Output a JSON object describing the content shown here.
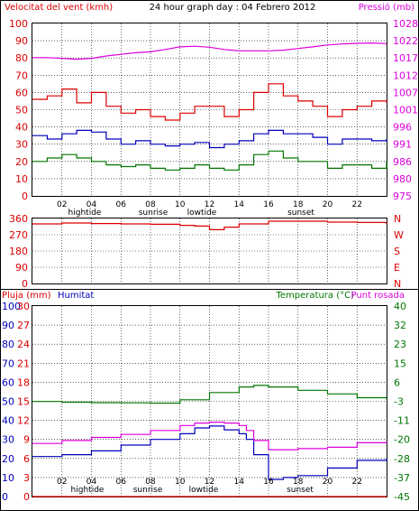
{
  "header": {
    "wind_speed_label": "Velocitat del vent (kmh)",
    "title": "24 hour graph day : 04 Febrero 2012",
    "pressure_label": "Pressió (mb)"
  },
  "bottom_header": {
    "rain_label": "Pluja (mm)",
    "humidity_label": "Humitat",
    "temperature_label": "Temperatura (°C)",
    "dewpoint_label": "Punt rosada"
  },
  "colors": {
    "wind": "#dd0000",
    "gust": "#ff0000",
    "avg": "#0000bb",
    "min": "#007700",
    "pressure": "#dd00dd",
    "humidity": "#0000bb",
    "temperature": "#007700",
    "dewpoint": "#dd00dd",
    "rain": "#dd0000",
    "grid": "#000000"
  },
  "x_ticks": [
    "02",
    "04",
    "06",
    "08",
    "10",
    "12",
    "14",
    "16",
    "18",
    "20",
    "22"
  ],
  "events": {
    "hightide": "hightide",
    "sunrise": "sunrise",
    "lowtide": "lowtide",
    "sunset": "sunset"
  },
  "chart_data": [
    {
      "type": "line",
      "x_unit": "hour",
      "x_ticks": [
        "02",
        "04",
        "06",
        "08",
        "10",
        "12",
        "14",
        "16",
        "18",
        "20",
        "22"
      ],
      "ylim": [
        0,
        100
      ],
      "ylim_right": [
        975,
        1028
      ],
      "yticks_left": [
        0,
        10,
        20,
        30,
        40,
        50,
        60,
        70,
        80,
        90,
        100
      ],
      "yticks_right": [
        975,
        980,
        986,
        991,
        996,
        1001,
        1007,
        1012,
        1017,
        1022,
        1028
      ],
      "xlabel": "",
      "ylabel": "Velocitat del vent (kmh)",
      "ylabel_right": "Pressió (mb)",
      "series": [
        {
          "name": "",
          "color": "#dd0000",
          "x": [
            0,
            1,
            2,
            3,
            4,
            5,
            6,
            7,
            8,
            9,
            10,
            11,
            12,
            13,
            14,
            15,
            16,
            17,
            18,
            19,
            20,
            21,
            22,
            23,
            24
          ],
          "values": [
            56,
            58,
            62,
            54,
            60,
            52,
            48,
            50,
            46,
            44,
            48,
            52,
            52,
            46,
            50,
            60,
            65,
            58,
            55,
            52,
            46,
            50,
            52,
            55,
            54
          ]
        },
        {
          "name": "",
          "color": "#0000bb",
          "x": [
            0,
            1,
            2,
            3,
            4,
            5,
            6,
            7,
            8,
            9,
            10,
            11,
            12,
            13,
            14,
            15,
            16,
            17,
            18,
            19,
            20,
            21,
            22,
            23,
            24
          ],
          "values": [
            35,
            33,
            36,
            38,
            37,
            33,
            30,
            32,
            30,
            29,
            30,
            31,
            28,
            30,
            32,
            36,
            38,
            36,
            36,
            34,
            30,
            33,
            33,
            32,
            33
          ]
        },
        {
          "name": "",
          "color": "#007700",
          "x": [
            0,
            1,
            2,
            3,
            4,
            5,
            6,
            7,
            8,
            9,
            10,
            11,
            12,
            13,
            14,
            15,
            16,
            17,
            18,
            19,
            20,
            21,
            22,
            23,
            24
          ],
          "values": [
            20,
            22,
            24,
            22,
            20,
            18,
            17,
            18,
            16,
            15,
            16,
            18,
            16,
            15,
            18,
            24,
            26,
            22,
            20,
            20,
            16,
            18,
            18,
            16,
            20
          ]
        },
        {
          "name": "Pressió (mb)",
          "color": "#dd00dd",
          "axis": "right",
          "x": [
            0,
            1,
            2,
            3,
            4,
            5,
            6,
            7,
            8,
            9,
            10,
            11,
            12,
            13,
            14,
            15,
            16,
            17,
            18,
            19,
            20,
            21,
            22,
            23,
            24
          ],
          "values": [
            1017.5,
            1017.5,
            1017.3,
            1017.0,
            1017.3,
            1018.0,
            1018.5,
            1019.0,
            1019.3,
            1020.0,
            1020.8,
            1021.0,
            1020.7,
            1020.0,
            1019.6,
            1019.6,
            1019.6,
            1019.8,
            1020.3,
            1020.8,
            1021.4,
            1021.7,
            1021.9,
            1022.0,
            1021.8
          ]
        }
      ]
    },
    {
      "type": "line",
      "x_unit": "hour",
      "ylim": [
        0,
        360
      ],
      "yticks_left": [
        0,
        90,
        180,
        270,
        360
      ],
      "direction_labels": [
        "N",
        "W",
        "S",
        "E",
        "N"
      ],
      "series": [
        {
          "name": "",
          "color": "#dd0000",
          "x": [
            0,
            2,
            4,
            6,
            8,
            10,
            11,
            12,
            13,
            14,
            16,
            18,
            20,
            22,
            24
          ],
          "values": [
            330,
            335,
            332,
            330,
            328,
            322,
            318,
            298,
            312,
            330,
            345,
            345,
            340,
            338,
            330
          ]
        }
      ]
    },
    {
      "type": "line",
      "x_unit": "hour",
      "ylim": [
        0,
        100
      ],
      "yticks_left": [
        0,
        10,
        20,
        30,
        40,
        50,
        60,
        70,
        80,
        90,
        100
      ],
      "yticks_left_inner": [
        0,
        3,
        6,
        9,
        12,
        15,
        18,
        21,
        24,
        27,
        30
      ],
      "ylim_right": [
        -45,
        40
      ],
      "yticks_right": [
        -45,
        -37,
        -28,
        -20,
        -11,
        -3,
        6,
        15,
        23,
        32,
        40
      ],
      "series": [
        {
          "name": "Humitat",
          "color": "#0000bb",
          "x": [
            0,
            2,
            4,
            6,
            8,
            10,
            11,
            12,
            13,
            14,
            14.5,
            15,
            16,
            17,
            18,
            20,
            22,
            24
          ],
          "values": [
            21,
            22,
            24,
            27,
            30,
            33,
            36,
            37,
            35,
            33,
            30,
            22,
            9,
            10,
            11,
            15,
            19,
            20
          ]
        },
        {
          "name": "Temperatura (°C)",
          "color": "#007700",
          "x": [
            0,
            2,
            4,
            6,
            8,
            10,
            12,
            14,
            15,
            16,
            18,
            20,
            22,
            24
          ],
          "values": [
            -2.6,
            -2.9,
            -3.1,
            -3.2,
            -3.3,
            -1.8,
            1.4,
            3.9,
            4.6,
            3.9,
            2.4,
            0.8,
            -0.9,
            -1.5
          ]
        },
        {
          "name": "Punt rosada",
          "color": "#dd00dd",
          "x": [
            0,
            2,
            4,
            6,
            8,
            10,
            11,
            12,
            13,
            14,
            14.5,
            15,
            16,
            18,
            20,
            22,
            24
          ],
          "values": [
            -21.3,
            -20.0,
            -18.6,
            -17.3,
            -15.5,
            -13.3,
            -12.2,
            -11.8,
            -12.2,
            -13.3,
            -15.5,
            -20.0,
            -24.1,
            -23.6,
            -23.0,
            -21.0,
            -20.5
          ]
        },
        {
          "name": "Pluja (mm)",
          "color": "#dd0000",
          "x": [
            0,
            24
          ],
          "values": [
            0,
            0
          ]
        }
      ]
    }
  ]
}
